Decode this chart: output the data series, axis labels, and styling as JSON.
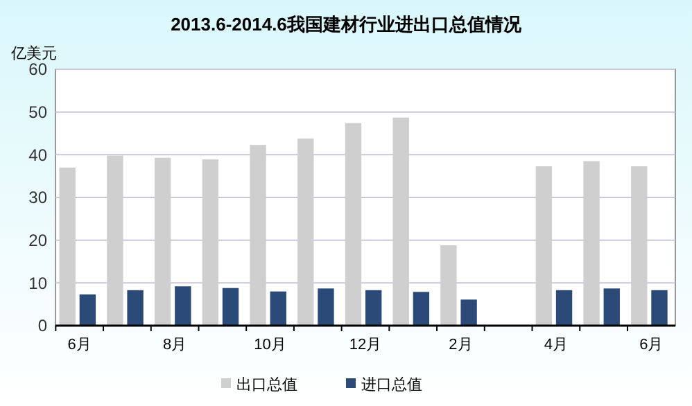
{
  "chart_data": {
    "type": "bar",
    "title": "2013.6-2014.6我国建材行业进出口总值情况",
    "ylabel": "亿美元",
    "categories": [
      "6月",
      null,
      "8月",
      null,
      "10月",
      null,
      "12月",
      null,
      "2月",
      null,
      "4月",
      null,
      "6月"
    ],
    "series": [
      {
        "name": "出口总值",
        "color": "#cfcfcf",
        "values": [
          37.0,
          39.8,
          39.3,
          38.9,
          42.3,
          43.8,
          47.4,
          48.7,
          18.8,
          null,
          37.3,
          38.5,
          37.3
        ]
      },
      {
        "name": "进口总值",
        "color": "#2b4a78",
        "values": [
          7.3,
          8.3,
          9.2,
          8.8,
          8.0,
          8.7,
          8.3,
          7.9,
          6.1,
          null,
          8.3,
          8.7,
          8.3
        ]
      }
    ],
    "ylim": [
      0,
      60
    ],
    "yticks": [
      0,
      10,
      20,
      30,
      40,
      50,
      60
    ],
    "grid": "y",
    "legend": "bottom"
  }
}
